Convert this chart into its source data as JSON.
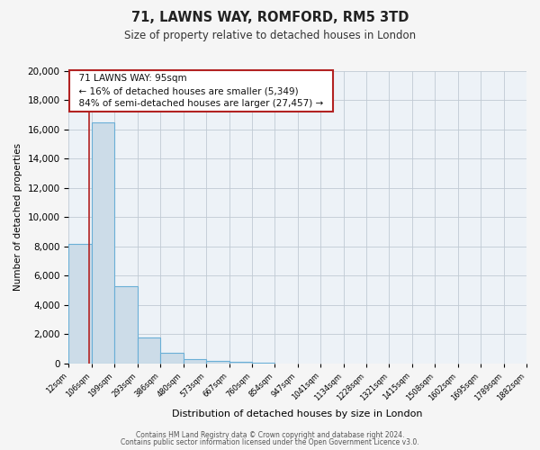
{
  "title": "71, LAWNS WAY, ROMFORD, RM5 3TD",
  "subtitle": "Size of property relative to detached houses in London",
  "xlabel": "Distribution of detached houses by size in London",
  "ylabel": "Number of detached properties",
  "bin_edges": [
    12,
    106,
    199,
    293,
    386,
    480,
    573,
    667,
    760,
    854,
    947,
    1041,
    1134,
    1228,
    1321,
    1415,
    1508,
    1602,
    1695,
    1789,
    1882
  ],
  "bar_heights": [
    8200,
    16500,
    5300,
    1750,
    700,
    300,
    150,
    100,
    50,
    0,
    0,
    0,
    0,
    0,
    0,
    0,
    0,
    0,
    0,
    0
  ],
  "bar_color": "#ccdce8",
  "bar_edge_color": "#6aafd6",
  "bar_edge_width": 0.8,
  "property_size": 95,
  "red_line_color": "#b22222",
  "ylim": [
    0,
    20000
  ],
  "yticks": [
    0,
    2000,
    4000,
    6000,
    8000,
    10000,
    12000,
    14000,
    16000,
    18000,
    20000
  ],
  "annotation_title": "71 LAWNS WAY: 95sqm",
  "annotation_line1": "← 16% of detached houses are smaller (5,349)",
  "annotation_line2": "84% of semi-detached houses are larger (27,457) →",
  "annotation_box_color": "#ffffff",
  "annotation_box_edge": "#b22222",
  "footer_line1": "Contains HM Land Registry data © Crown copyright and database right 2024.",
  "footer_line2": "Contains public sector information licensed under the Open Government Licence v3.0.",
  "bg_color": "#f5f5f5",
  "plot_bg_color": "#edf2f7",
  "grid_color": "#c0cad4"
}
